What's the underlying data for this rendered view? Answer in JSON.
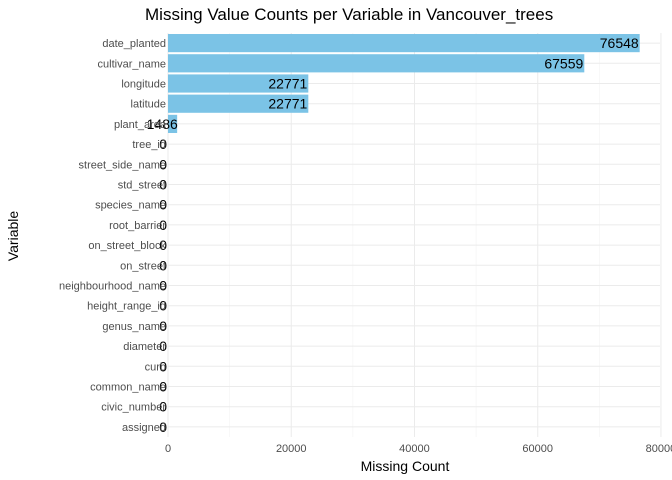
{
  "chart_data": {
    "type": "bar",
    "orientation": "horizontal",
    "title": "Missing Value Counts per Variable in Vancouver_trees",
    "xlabel": "Missing Count",
    "ylabel": "Variable",
    "xlim": [
      0,
      80000
    ],
    "x_ticks": [
      0,
      20000,
      40000,
      60000,
      80000
    ],
    "x_tick_labels": [
      "0",
      "20000",
      "40000",
      "60000",
      "80000"
    ],
    "grid": true,
    "legend": "none",
    "bar_color": "#7bc3e6",
    "categories": [
      "date_planted",
      "cultivar_name",
      "longitude",
      "latitude",
      "plant_area",
      "tree_id",
      "street_side_name",
      "std_street",
      "species_name",
      "root_barrier",
      "on_street_block",
      "on_street",
      "neighbourhood_name",
      "height_range_id",
      "genus_name",
      "diameter",
      "curb",
      "common_name",
      "civic_number",
      "assigned"
    ],
    "values": [
      76548,
      67559,
      22771,
      22771,
      1486,
      0,
      0,
      0,
      0,
      0,
      0,
      0,
      0,
      0,
      0,
      0,
      0,
      0,
      0,
      0
    ],
    "data_labels": [
      "76548",
      "67559",
      "22771",
      "22771",
      "1486",
      "0",
      "0",
      "0",
      "0",
      "0",
      "0",
      "0",
      "0",
      "0",
      "0",
      "0",
      "0",
      "0",
      "0",
      "0"
    ]
  }
}
